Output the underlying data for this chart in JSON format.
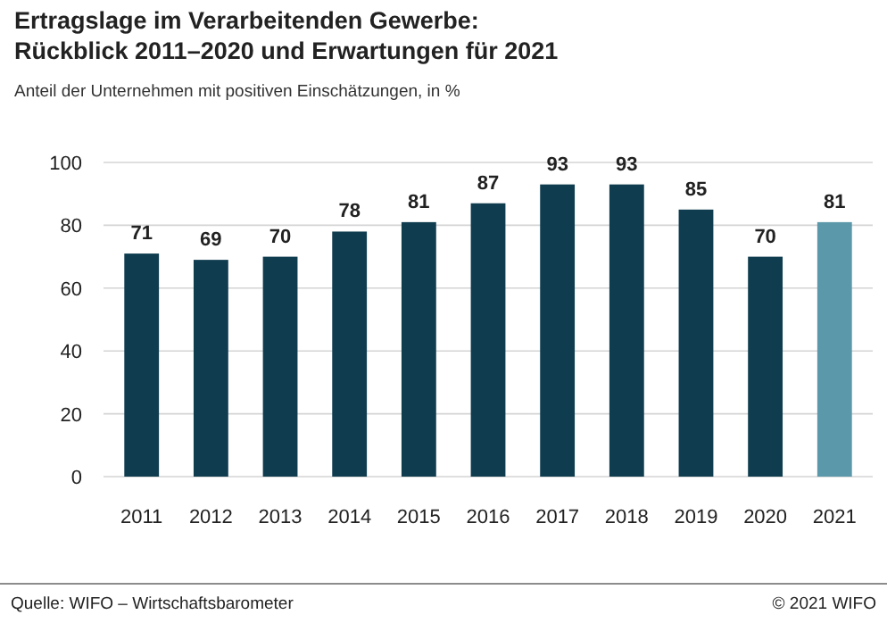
{
  "chart_data": {
    "type": "bar",
    "title": "Ertragslage im Verarbeitenden Gewerbe:\nRückblick 2011–2020 und Erwartungen für 2021",
    "subtitle": "Anteil der Unternehmen mit positiven Einschätzungen, in %",
    "categories": [
      "2011",
      "2012",
      "2013",
      "2014",
      "2015",
      "2016",
      "2017",
      "2018",
      "2019",
      "2020",
      "2021"
    ],
    "values": [
      71,
      69,
      70,
      78,
      81,
      87,
      93,
      93,
      85,
      70,
      81
    ],
    "colors": [
      "#0f3d4f",
      "#0f3d4f",
      "#0f3d4f",
      "#0f3d4f",
      "#0f3d4f",
      "#0f3d4f",
      "#0f3d4f",
      "#0f3d4f",
      "#0f3d4f",
      "#0f3d4f",
      "#5b98aa"
    ],
    "ylim": [
      0,
      100
    ],
    "yticks": [
      0,
      20,
      40,
      60,
      80,
      100
    ],
    "grid": "y",
    "data_labels": true,
    "annotations": [
      "Quelle: WIFO – Wirtschaftsbarometer",
      "© 2021 WIFO"
    ]
  }
}
